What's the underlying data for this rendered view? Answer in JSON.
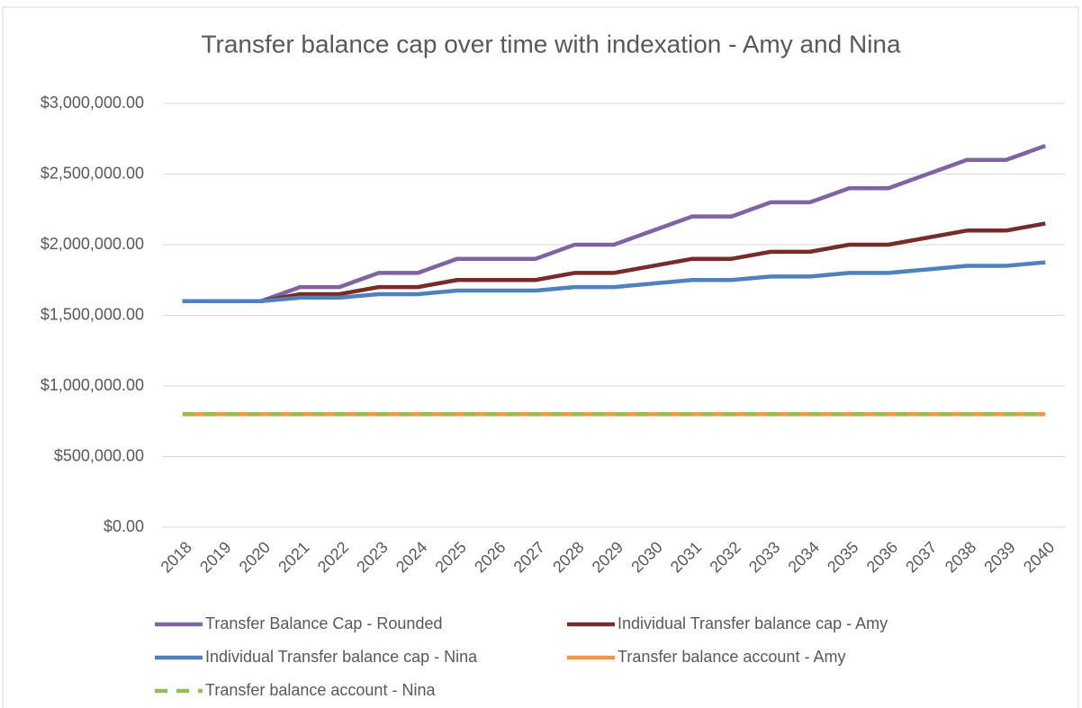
{
  "chart_data": {
    "type": "line",
    "title": "Transfer balance cap over time with indexation - Amy and Nina",
    "categories": [
      "2018",
      "2019",
      "2020",
      "2021",
      "2022",
      "2023",
      "2024",
      "2025",
      "2026",
      "2027",
      "2028",
      "2029",
      "2030",
      "2031",
      "2032",
      "2033",
      "2034",
      "2035",
      "2036",
      "2037",
      "2038",
      "2039",
      "2040"
    ],
    "series": [
      {
        "name": "Transfer Balance Cap - Rounded",
        "color": "#8064a2",
        "values": [
          1600000,
          1600000,
          1600000,
          1700000,
          1700000,
          1800000,
          1800000,
          1900000,
          1900000,
          1900000,
          2000000,
          2000000,
          2100000,
          2200000,
          2200000,
          2300000,
          2300000,
          2400000,
          2400000,
          2500000,
          2600000,
          2600000,
          2700000
        ]
      },
      {
        "name": "Individual Transfer balance cap - Amy",
        "color": "#772c2a",
        "values": [
          1600000,
          1600000,
          1600000,
          1650000,
          1650000,
          1700000,
          1700000,
          1750000,
          1750000,
          1750000,
          1800000,
          1800000,
          1850000,
          1900000,
          1900000,
          1950000,
          1950000,
          2000000,
          2000000,
          2050000,
          2100000,
          2100000,
          2150000
        ]
      },
      {
        "name": "Individual Transfer balance cap - Nina",
        "color": "#4f81bd",
        "values": [
          1600000,
          1600000,
          1600000,
          1625000,
          1625000,
          1650000,
          1650000,
          1675000,
          1675000,
          1675000,
          1700000,
          1700000,
          1725000,
          1750000,
          1750000,
          1775000,
          1775000,
          1800000,
          1800000,
          1825000,
          1850000,
          1850000,
          1875000
        ]
      },
      {
        "name": "Transfer balance account - Amy",
        "color": "#f79646",
        "values": [
          800000,
          800000,
          800000,
          800000,
          800000,
          800000,
          800000,
          800000,
          800000,
          800000,
          800000,
          800000,
          800000,
          800000,
          800000,
          800000,
          800000,
          800000,
          800000,
          800000,
          800000,
          800000,
          800000
        ]
      },
      {
        "name": "Transfer balance account - Nina",
        "color": "#9bbb59",
        "dash": true,
        "values": [
          800000,
          800000,
          800000,
          800000,
          800000,
          800000,
          800000,
          800000,
          800000,
          800000,
          800000,
          800000,
          800000,
          800000,
          800000,
          800000,
          800000,
          800000,
          800000,
          800000,
          800000,
          800000,
          800000
        ]
      }
    ],
    "ylim": [
      0,
      3000000
    ],
    "yticks": [
      {
        "value": 0,
        "label": "$0.00"
      },
      {
        "value": 500000,
        "label": "$500,000.00"
      },
      {
        "value": 1000000,
        "label": "$1,000,000.00"
      },
      {
        "value": 1500000,
        "label": "$1,500,000.00"
      },
      {
        "value": 2000000,
        "label": "$2,000,000.00"
      },
      {
        "value": 2500000,
        "label": "$2,500,000.00"
      },
      {
        "value": 3000000,
        "label": "$3,000,000.00"
      }
    ],
    "grid": true,
    "legend": "bottom"
  }
}
